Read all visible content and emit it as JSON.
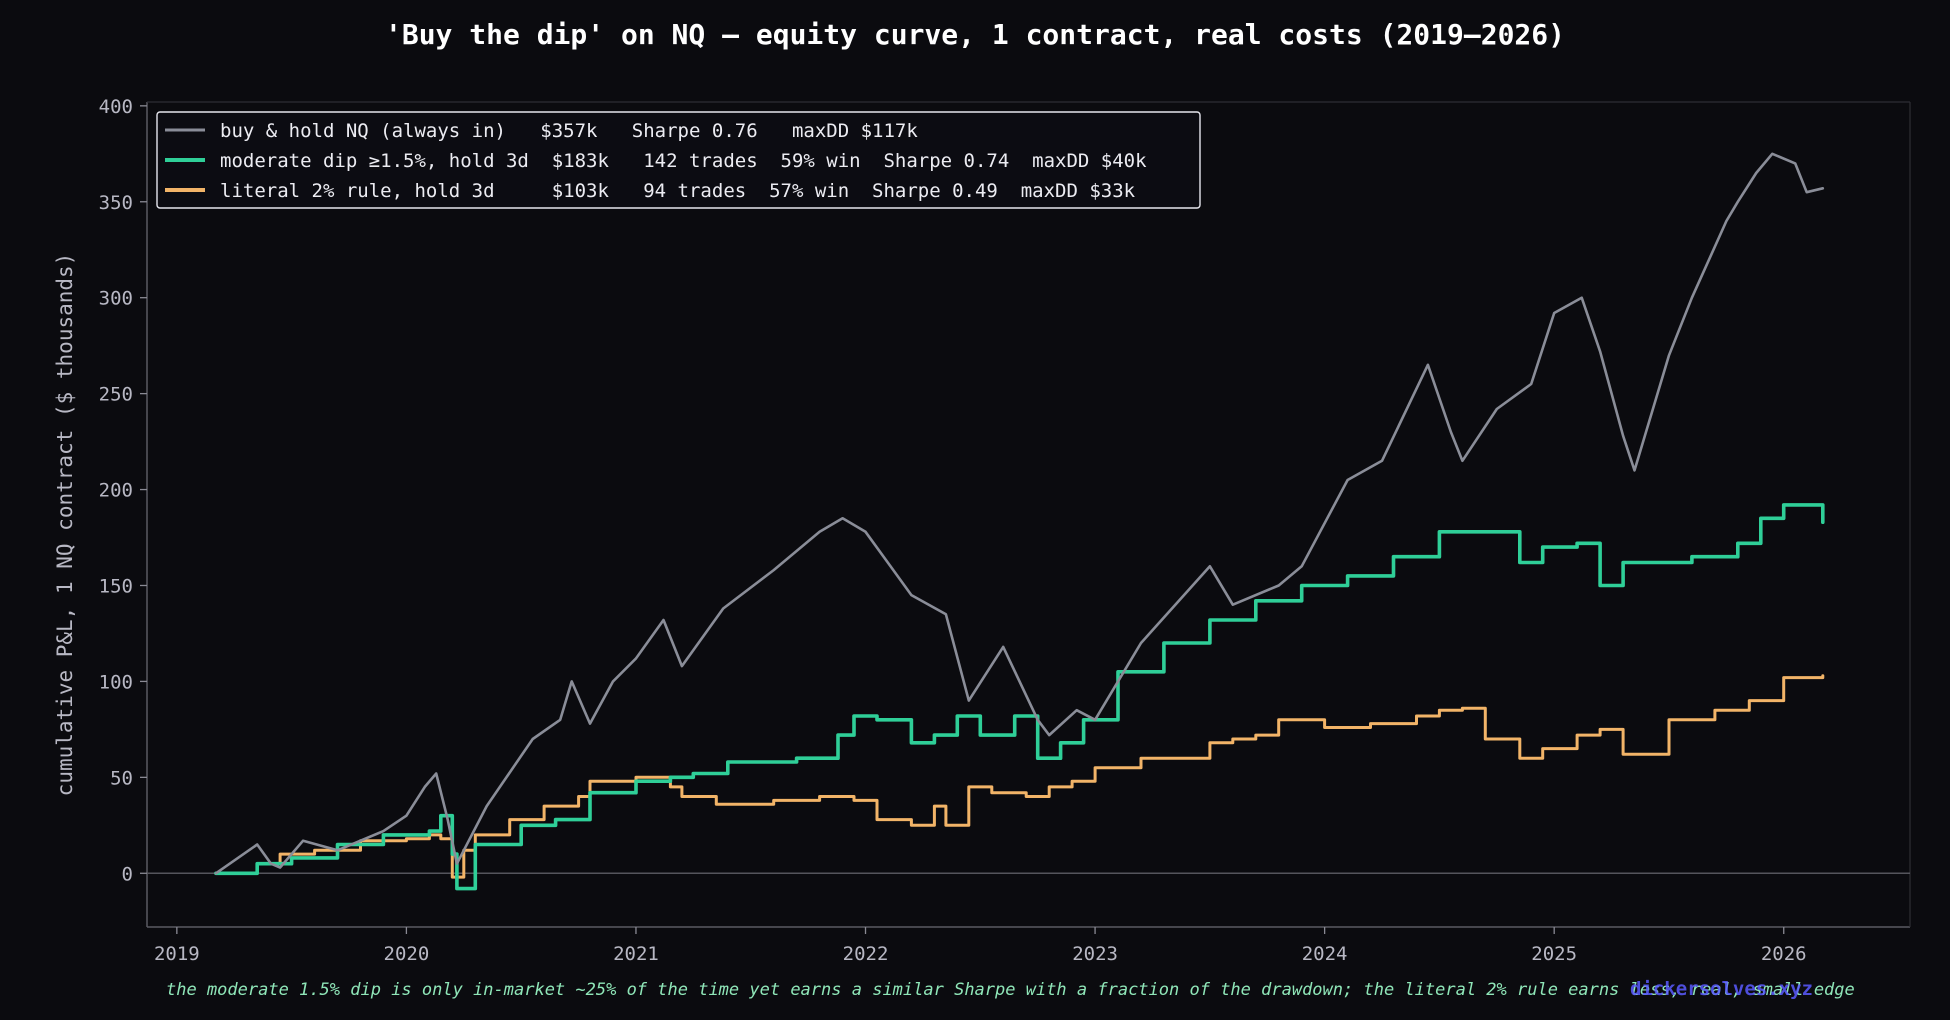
{
  "colors": {
    "background": "#0b0b0f",
    "buy_hold": "#8a8d98",
    "moderate": "#2fcf98",
    "literal": "#f2b468",
    "grid_zero": "#55555c",
    "note": "#8fe6b8",
    "watermark": "#5b5bff"
  },
  "chart_data": {
    "type": "line",
    "title": "'Buy the dip' on NQ — equity curve, 1 contract, real costs (2019–2026)",
    "xlabel": "",
    "ylabel": "cumulative P&L, 1 NQ contract  ($ thousands)",
    "xlim": [
      2018.87,
      2026.55
    ],
    "ylim": [
      -28,
      402
    ],
    "x_ticks": [
      "2019",
      "2020",
      "2021",
      "2022",
      "2023",
      "2024",
      "2025",
      "2026"
    ],
    "y_ticks": [
      "0",
      "50",
      "100",
      "150",
      "200",
      "250",
      "300",
      "350",
      "400"
    ],
    "grid": false,
    "legend_position": "top-left",
    "series": [
      {
        "name": "buy & hold NQ (always in)   $357k   Sharpe 0.76   maxDD $117k",
        "color_key": "buy_hold",
        "x": [
          2019.17,
          2019.35,
          2019.41,
          2019.45,
          2019.55,
          2019.7,
          2019.9,
          2020.0,
          2020.08,
          2020.13,
          2020.18,
          2020.22,
          2020.35,
          2020.55,
          2020.67,
          2020.72,
          2020.8,
          2020.9,
          2021.0,
          2021.12,
          2021.2,
          2021.38,
          2021.6,
          2021.8,
          2021.9,
          2022.0,
          2022.2,
          2022.35,
          2022.45,
          2022.6,
          2022.75,
          2022.8,
          2022.92,
          2023.0,
          2023.2,
          2023.5,
          2023.6,
          2023.8,
          2023.9,
          2024.1,
          2024.25,
          2024.45,
          2024.55,
          2024.6,
          2024.75,
          2024.9,
          2025.0,
          2025.12,
          2025.2,
          2025.3,
          2025.35,
          2025.5,
          2025.6,
          2025.75,
          2025.8,
          2025.88,
          2025.95,
          2026.05,
          2026.1,
          2026.17
        ],
        "y": [
          0,
          15,
          5,
          3,
          17,
          12,
          22,
          30,
          45,
          52,
          28,
          5,
          35,
          70,
          80,
          100,
          78,
          100,
          112,
          132,
          108,
          138,
          158,
          178,
          185,
          178,
          145,
          135,
          90,
          118,
          80,
          72,
          85,
          80,
          120,
          160,
          140,
          150,
          160,
          205,
          215,
          265,
          230,
          215,
          242,
          255,
          292,
          300,
          272,
          228,
          210,
          270,
          300,
          340,
          350,
          365,
          375,
          370,
          355,
          357
        ]
      },
      {
        "name": "moderate dip ≥1.5%, hold 3d  $183k   142 trades  59% win  Sharpe 0.74  maxDD $40k",
        "color_key": "moderate",
        "x": [
          2019.17,
          2019.3,
          2019.35,
          2019.5,
          2019.7,
          2019.9,
          2020.1,
          2020.15,
          2020.2,
          2020.22,
          2020.3,
          2020.5,
          2020.65,
          2020.8,
          2021.0,
          2021.15,
          2021.25,
          2021.4,
          2021.7,
          2021.88,
          2021.95,
          2022.05,
          2022.2,
          2022.3,
          2022.4,
          2022.5,
          2022.65,
          2022.75,
          2022.85,
          2022.95,
          2023.1,
          2023.3,
          2023.5,
          2023.7,
          2023.9,
          2024.1,
          2024.3,
          2024.5,
          2024.7,
          2024.85,
          2024.95,
          2025.1,
          2025.2,
          2025.3,
          2025.6,
          2025.8,
          2025.9,
          2026.0,
          2026.17
        ],
        "y": [
          0,
          0,
          5,
          8,
          15,
          20,
          22,
          30,
          10,
          -8,
          15,
          25,
          28,
          42,
          48,
          50,
          52,
          58,
          60,
          72,
          82,
          80,
          68,
          72,
          82,
          72,
          82,
          60,
          68,
          80,
          105,
          120,
          132,
          142,
          150,
          155,
          165,
          178,
          178,
          162,
          170,
          172,
          150,
          162,
          165,
          172,
          185,
          192,
          183
        ]
      },
      {
        "name": "literal 2% rule, hold 3d     $103k   94 trades  57% win  Sharpe 0.49  maxDD $33k",
        "color_key": "literal",
        "x": [
          2019.17,
          2019.3,
          2019.35,
          2019.45,
          2019.6,
          2019.8,
          2020.0,
          2020.1,
          2020.15,
          2020.2,
          2020.25,
          2020.3,
          2020.45,
          2020.6,
          2020.75,
          2020.8,
          2021.0,
          2021.1,
          2021.15,
          2021.2,
          2021.35,
          2021.6,
          2021.8,
          2021.95,
          2022.05,
          2022.2,
          2022.3,
          2022.35,
          2022.45,
          2022.55,
          2022.7,
          2022.8,
          2022.9,
          2023.0,
          2023.2,
          2023.5,
          2023.6,
          2023.7,
          2023.8,
          2024.0,
          2024.2,
          2024.4,
          2024.5,
          2024.6,
          2024.7,
          2024.85,
          2024.95,
          2025.1,
          2025.2,
          2025.3,
          2025.5,
          2025.7,
          2025.85,
          2026.0,
          2026.17
        ],
        "y": [
          0,
          0,
          5,
          10,
          12,
          17,
          18,
          20,
          18,
          -2,
          12,
          20,
          28,
          35,
          40,
          48,
          50,
          50,
          45,
          40,
          36,
          38,
          40,
          38,
          28,
          25,
          35,
          25,
          45,
          42,
          40,
          45,
          48,
          55,
          60,
          68,
          70,
          72,
          80,
          76,
          78,
          82,
          85,
          86,
          70,
          60,
          65,
          72,
          75,
          62,
          80,
          85,
          90,
          102,
          103
        ]
      }
    ],
    "annotations": [
      "the moderate 1.5% dip is only in-market ~25% of the time yet earns a similar Sharpe with a fraction of the drawdown; the literal 2% rule earns less, real, small edge"
    ],
    "watermark": "dickersolves.xyz"
  }
}
